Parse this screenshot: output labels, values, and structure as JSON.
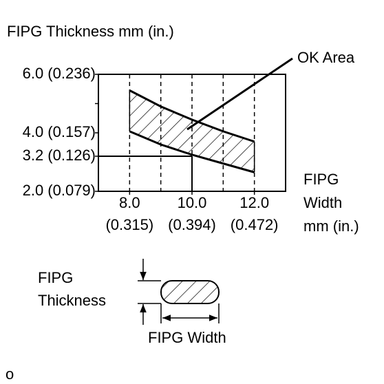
{
  "chart_data": {
    "type": "band",
    "title": "FIPG Thickness mm (in.)",
    "xlabel": [
      "FIPG",
      "Width",
      "mm (in.)"
    ],
    "annotation": "OK Area",
    "x": [
      8,
      9,
      10,
      11,
      12
    ],
    "series": [
      {
        "color": "#000000",
        "values": [
          5.45,
          4.9,
          4.45,
          4.05,
          3.7
        ]
      },
      {
        "color": "#000000",
        "values": [
          4.05,
          3.6,
          3.25,
          2.95,
          2.65
        ]
      }
    ],
    "xlim": [
      7,
      13
    ],
    "ylim": [
      2,
      6
    ],
    "xticks": [
      {
        "value": 8,
        "label": "8.0"
      },
      {
        "value": 10,
        "label": "10.0"
      },
      {
        "value": 12,
        "label": "12.0"
      }
    ],
    "xtick_sublabels": [
      "(0.315)",
      "(0.394)",
      "(0.472)"
    ],
    "xgrid": [
      8,
      9,
      10,
      11,
      12
    ],
    "yticks": [
      {
        "value": 6,
        "label": "6.0 (0.236)"
      },
      {
        "value": 4,
        "label": "4.0 (0.157)"
      },
      {
        "value": 3.2,
        "label": "3.2 (0.126)"
      },
      {
        "value": 2,
        "label": "2.0 (0.079)"
      }
    ],
    "yminor": [
      5
    ],
    "reference_point": {
      "x": 10,
      "y": 3.2
    }
  },
  "diagram": {
    "thickness_label": [
      "FIPG",
      "Thickness"
    ],
    "width_label": "FIPG Width",
    "footnote": "o"
  }
}
